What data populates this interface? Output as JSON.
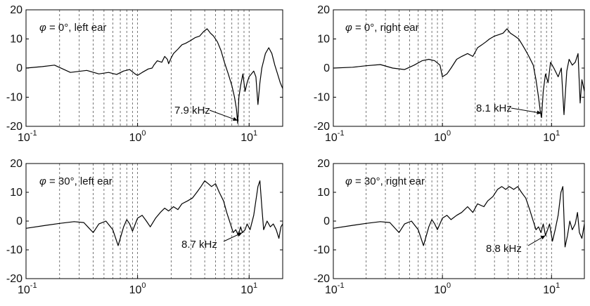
{
  "chart_data": [
    {
      "type": "line",
      "panel_label": {
        "symbol": "φ",
        "text": " = 0°, left ear"
      },
      "xscale": "log",
      "xlim": [
        0.1,
        20
      ],
      "ylim": [
        -20,
        20
      ],
      "yticks": [
        -20,
        -10,
        0,
        10,
        20
      ],
      "xticks": [
        {
          "value": 0.1,
          "base": "10",
          "exp": "-1"
        },
        {
          "value": 1,
          "base": "10",
          "exp": "0"
        },
        {
          "value": 10,
          "base": "10",
          "exp": "1"
        }
      ],
      "grid": {
        "x": "dashed",
        "y": "off"
      },
      "annotation": {
        "text": "7.9 kHz",
        "x": 7.9,
        "y": -18
      },
      "series": [
        {
          "values": [
            [
              0.1,
              0
            ],
            [
              0.14,
              0.5
            ],
            [
              0.18,
              1
            ],
            [
              0.25,
              -1.5
            ],
            [
              0.35,
              -0.8
            ],
            [
              0.45,
              -2
            ],
            [
              0.55,
              -1.5
            ],
            [
              0.65,
              -2.2
            ],
            [
              0.75,
              -1
            ],
            [
              0.85,
              -0.5
            ],
            [
              0.95,
              -2
            ],
            [
              1.0,
              -2.5
            ],
            [
              1.1,
              -1.5
            ],
            [
              1.25,
              -0.3
            ],
            [
              1.35,
              0
            ],
            [
              1.4,
              1
            ],
            [
              1.5,
              2.5
            ],
            [
              1.65,
              2
            ],
            [
              1.75,
              4
            ],
            [
              1.85,
              3
            ],
            [
              1.9,
              1.5
            ],
            [
              2.0,
              3.5
            ],
            [
              2.1,
              5
            ],
            [
              2.3,
              6.5
            ],
            [
              2.5,
              8
            ],
            [
              2.7,
              8.5
            ],
            [
              3.0,
              9.5
            ],
            [
              3.3,
              10.5
            ],
            [
              3.6,
              11
            ],
            [
              3.9,
              12.5
            ],
            [
              4.2,
              13.5
            ],
            [
              4.5,
              12
            ],
            [
              4.8,
              11
            ],
            [
              5.2,
              9
            ],
            [
              5.6,
              6
            ],
            [
              6.0,
              2
            ],
            [
              6.5,
              -2
            ],
            [
              7.0,
              -6
            ],
            [
              7.4,
              -10
            ],
            [
              7.7,
              -14
            ],
            [
              7.9,
              -19
            ],
            [
              8.1,
              -10
            ],
            [
              8.4,
              -6
            ],
            [
              8.8,
              -2
            ],
            [
              9.2,
              -8
            ],
            [
              9.6,
              -5
            ],
            [
              10.0,
              -3
            ],
            [
              10.5,
              -2
            ],
            [
              11.0,
              -1
            ],
            [
              11.5,
              -3
            ],
            [
              12.0,
              -12.5
            ],
            [
              12.5,
              -5
            ],
            [
              13.0,
              0
            ],
            [
              14.0,
              5
            ],
            [
              15.0,
              7
            ],
            [
              16.0,
              5
            ],
            [
              17.0,
              1
            ],
            [
              18.0,
              -2
            ],
            [
              19.0,
              -5
            ],
            [
              20.0,
              -7
            ]
          ]
        }
      ]
    },
    {
      "type": "line",
      "panel_label": {
        "symbol": "φ",
        "text": " = 0°, right ear"
      },
      "xscale": "log",
      "xlim": [
        0.1,
        20
      ],
      "ylim": [
        -20,
        20
      ],
      "yticks": [
        -20,
        -10,
        0,
        10,
        20
      ],
      "xticks": [
        {
          "value": 0.1,
          "base": "10",
          "exp": "-1"
        },
        {
          "value": 1,
          "base": "10",
          "exp": "0"
        },
        {
          "value": 10,
          "base": "10",
          "exp": "1"
        }
      ],
      "grid": {
        "x": "dashed",
        "y": "off"
      },
      "annotation": {
        "text": "8.1 kHz",
        "x": 8.1,
        "y": -15.5
      },
      "series": [
        {
          "values": [
            [
              0.1,
              0
            ],
            [
              0.15,
              0.3
            ],
            [
              0.2,
              0.8
            ],
            [
              0.27,
              1.2
            ],
            [
              0.35,
              0
            ],
            [
              0.45,
              -0.5
            ],
            [
              0.55,
              1
            ],
            [
              0.65,
              2.5
            ],
            [
              0.75,
              3
            ],
            [
              0.85,
              2.5
            ],
            [
              0.95,
              1
            ],
            [
              1.0,
              -3
            ],
            [
              1.1,
              -2
            ],
            [
              1.2,
              0
            ],
            [
              1.35,
              3
            ],
            [
              1.5,
              4
            ],
            [
              1.7,
              5
            ],
            [
              1.9,
              4
            ],
            [
              2.1,
              7
            ],
            [
              2.3,
              8
            ],
            [
              2.5,
              9
            ],
            [
              2.7,
              10
            ],
            [
              3.0,
              11
            ],
            [
              3.3,
              11.5
            ],
            [
              3.6,
              12
            ],
            [
              3.9,
              13.5
            ],
            [
              4.2,
              12
            ],
            [
              4.6,
              11
            ],
            [
              5.0,
              10
            ],
            [
              5.4,
              8
            ],
            [
              5.8,
              6
            ],
            [
              6.2,
              4
            ],
            [
              6.8,
              1
            ],
            [
              7.2,
              -4
            ],
            [
              7.6,
              -10
            ],
            [
              7.9,
              -15
            ],
            [
              8.1,
              -17
            ],
            [
              8.4,
              -8
            ],
            [
              8.8,
              -2
            ],
            [
              9.3,
              -5
            ],
            [
              9.8,
              2
            ],
            [
              10.5,
              0
            ],
            [
              11.5,
              -3
            ],
            [
              12.3,
              0
            ],
            [
              13.0,
              -16
            ],
            [
              13.8,
              -1
            ],
            [
              14.5,
              3
            ],
            [
              15.5,
              1
            ],
            [
              16.5,
              2
            ],
            [
              17.5,
              5
            ],
            [
              18.3,
              -12
            ],
            [
              19.0,
              -4
            ],
            [
              20.0,
              -8
            ]
          ]
        }
      ]
    },
    {
      "type": "line",
      "panel_label": {
        "symbol": "φ",
        "text": " = 30°, left ear"
      },
      "xscale": "log",
      "xlim": [
        0.1,
        20
      ],
      "ylim": [
        -20,
        20
      ],
      "yticks": [
        -20,
        -10,
        0,
        10,
        20
      ],
      "xticks": [
        {
          "value": 0.1,
          "base": "10",
          "exp": "-1"
        },
        {
          "value": 1,
          "base": "10",
          "exp": "0"
        },
        {
          "value": 10,
          "base": "10",
          "exp": "1"
        }
      ],
      "grid": {
        "x": "dashed",
        "y": "off"
      },
      "annotation": {
        "text": "8.7 kHz",
        "x": 8.7,
        "y": -4
      },
      "series": [
        {
          "values": [
            [
              0.1,
              -2.5
            ],
            [
              0.15,
              -1.5
            ],
            [
              0.2,
              -0.8
            ],
            [
              0.27,
              -0.2
            ],
            [
              0.33,
              -0.5
            ],
            [
              0.4,
              -4
            ],
            [
              0.45,
              -1
            ],
            [
              0.52,
              0
            ],
            [
              0.6,
              -3
            ],
            [
              0.67,
              -8.5
            ],
            [
              0.75,
              -2
            ],
            [
              0.8,
              0.5
            ],
            [
              0.85,
              -1
            ],
            [
              0.9,
              -3.5
            ],
            [
              1.0,
              1
            ],
            [
              1.1,
              2
            ],
            [
              1.2,
              0
            ],
            [
              1.3,
              -2
            ],
            [
              1.45,
              1
            ],
            [
              1.6,
              3
            ],
            [
              1.75,
              4.5
            ],
            [
              1.9,
              3.5
            ],
            [
              2.1,
              5
            ],
            [
              2.3,
              4
            ],
            [
              2.5,
              6
            ],
            [
              2.8,
              7
            ],
            [
              3.1,
              8
            ],
            [
              3.4,
              10
            ],
            [
              3.7,
              12
            ],
            [
              4.0,
              14
            ],
            [
              4.3,
              13
            ],
            [
              4.6,
              12
            ],
            [
              5.0,
              13
            ],
            [
              5.4,
              10
            ],
            [
              5.9,
              7
            ],
            [
              6.3,
              3
            ],
            [
              6.8,
              -1
            ],
            [
              7.2,
              -4
            ],
            [
              7.6,
              -3
            ],
            [
              8.0,
              -5
            ],
            [
              8.4,
              -2
            ],
            [
              8.7,
              -4
            ],
            [
              9.2,
              -3
            ],
            [
              9.6,
              -1
            ],
            [
              10.2,
              -3
            ],
            [
              11.0,
              2
            ],
            [
              12.0,
              12
            ],
            [
              12.5,
              14
            ],
            [
              13.0,
              5
            ],
            [
              13.5,
              -3
            ],
            [
              14.5,
              0
            ],
            [
              15.5,
              -2
            ],
            [
              16.5,
              -1
            ],
            [
              17.5,
              -3
            ],
            [
              18.5,
              -6
            ],
            [
              19.3,
              -2
            ],
            [
              20.0,
              -1
            ]
          ]
        }
      ]
    },
    {
      "type": "line",
      "panel_label": {
        "symbol": "φ",
        "text": " = 30°, right ear"
      },
      "xscale": "log",
      "xlim": [
        0.1,
        20
      ],
      "ylim": [
        -20,
        20
      ],
      "yticks": [
        -20,
        -10,
        0,
        10,
        20
      ],
      "xticks": [
        {
          "value": 0.1,
          "base": "10",
          "exp": "-1"
        },
        {
          "value": 1,
          "base": "10",
          "exp": "0"
        },
        {
          "value": 10,
          "base": "10",
          "exp": "1"
        }
      ],
      "grid": {
        "x": "dashed",
        "y": "off"
      },
      "annotation": {
        "text": "8.8 kHz",
        "x": 8.8,
        "y": -5
      },
      "series": [
        {
          "values": [
            [
              0.1,
              -2.5
            ],
            [
              0.15,
              -1.5
            ],
            [
              0.2,
              -0.8
            ],
            [
              0.27,
              -0.2
            ],
            [
              0.33,
              -0.5
            ],
            [
              0.4,
              -4
            ],
            [
              0.45,
              -1
            ],
            [
              0.52,
              0
            ],
            [
              0.6,
              -3
            ],
            [
              0.67,
              -8.5
            ],
            [
              0.75,
              -2
            ],
            [
              0.8,
              0.5
            ],
            [
              0.85,
              -1
            ],
            [
              0.9,
              -3
            ],
            [
              1.0,
              1
            ],
            [
              1.1,
              2
            ],
            [
              1.2,
              0.5
            ],
            [
              1.35,
              2
            ],
            [
              1.5,
              3
            ],
            [
              1.7,
              5
            ],
            [
              1.9,
              3
            ],
            [
              2.1,
              6
            ],
            [
              2.4,
              5
            ],
            [
              2.6,
              7
            ],
            [
              2.9,
              8.5
            ],
            [
              3.2,
              11
            ],
            [
              3.5,
              12
            ],
            [
              3.8,
              11
            ],
            [
              4.1,
              12
            ],
            [
              4.5,
              11
            ],
            [
              4.9,
              12
            ],
            [
              5.3,
              10
            ],
            [
              5.8,
              8
            ],
            [
              6.3,
              4
            ],
            [
              6.8,
              0
            ],
            [
              7.2,
              -3
            ],
            [
              7.6,
              -2
            ],
            [
              8.0,
              -4
            ],
            [
              8.4,
              -1
            ],
            [
              8.8,
              -5
            ],
            [
              9.2,
              -3
            ],
            [
              9.6,
              -1
            ],
            [
              10.2,
              -7
            ],
            [
              10.8,
              -3
            ],
            [
              11.5,
              2
            ],
            [
              12.2,
              10
            ],
            [
              12.7,
              12
            ],
            [
              13.3,
              -9
            ],
            [
              14.0,
              -5
            ],
            [
              14.7,
              0
            ],
            [
              15.5,
              -3
            ],
            [
              16.5,
              -1
            ],
            [
              17.3,
              3
            ],
            [
              18.0,
              -4
            ],
            [
              19.0,
              -6
            ],
            [
              20.0,
              -1
            ]
          ]
        }
      ]
    }
  ]
}
